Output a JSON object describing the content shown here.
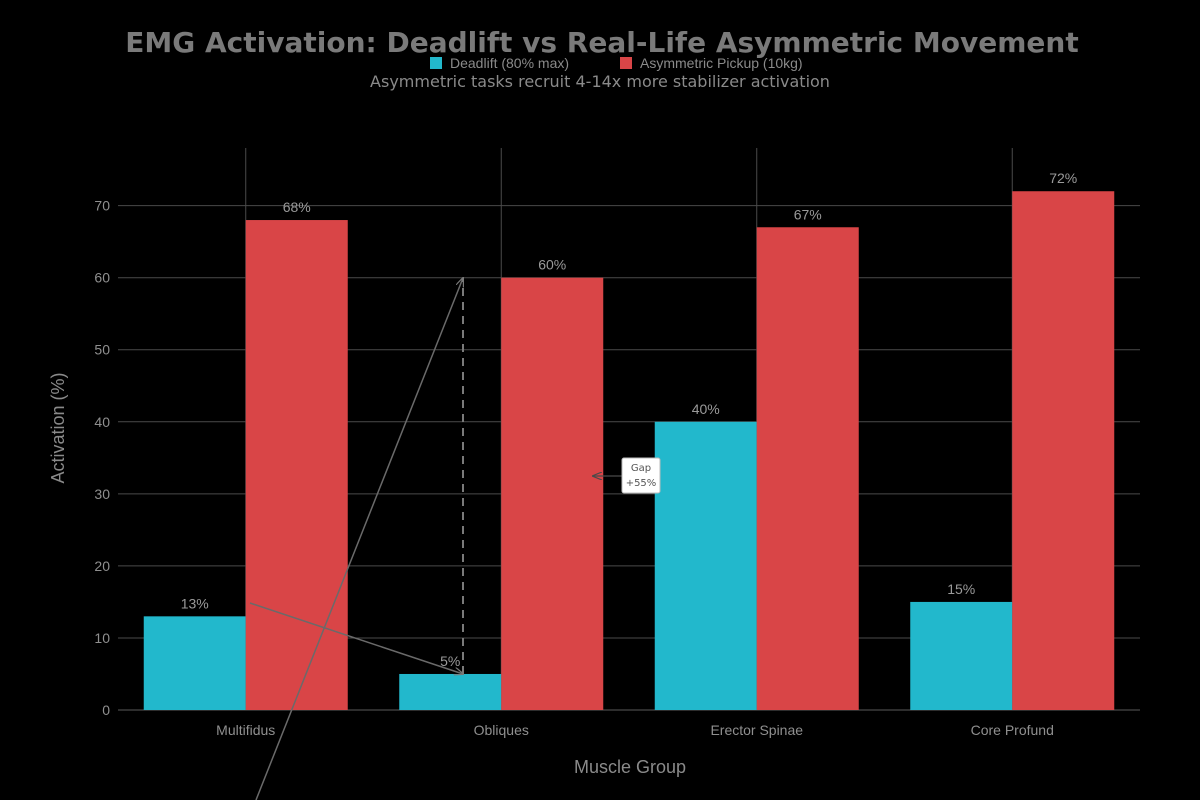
{
  "chart_data": {
    "type": "bar",
    "title": "EMG Activation: Deadlift vs Real-Life Asymmetric Movement",
    "subtitle": "Asymmetric tasks recruit 4-14x more stabilizer activation",
    "xlabel": "Muscle Group",
    "ylabel": "Activation (%)",
    "ylim": [
      0,
      78
    ],
    "yticks": [
      0,
      10,
      20,
      30,
      40,
      50,
      60,
      70
    ],
    "categories": [
      "Multifidus",
      "Obliques",
      "Erector Spinae",
      "Core Profund"
    ],
    "series": [
      {
        "name": "Deadlift (80% max)",
        "values": [
          13,
          5,
          40,
          15
        ],
        "labels": [
          "13%",
          "5%",
          "40%",
          "15%"
        ],
        "color": "#22b8cc"
      },
      {
        "name": "Asymmetric Pickup (10kg)",
        "values": [
          68,
          60,
          67,
          72
        ],
        "labels": [
          "68%",
          "60%",
          "67%",
          "72%"
        ],
        "color": "#d94547"
      }
    ],
    "grid": true,
    "legend": "top-center",
    "annotation": {
      "line1": "Gap",
      "line2": "+55%",
      "value": 55
    }
  }
}
